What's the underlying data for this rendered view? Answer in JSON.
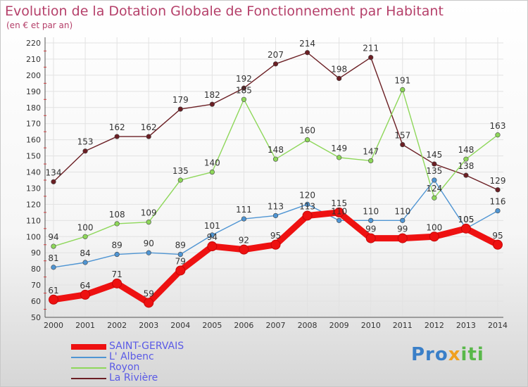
{
  "title": "Evolution de la Dotation Globale de Fonctionnement par Habitant",
  "subtitle": "(en € et par an)",
  "logo": {
    "part1": "Pro",
    "part2": "x",
    "part3": "iti"
  },
  "chart_data": {
    "type": "line",
    "title": "Evolution de la Dotation Globale de Fonctionnement par Habitant",
    "xlabel": "",
    "ylabel": "(en € et par an)",
    "ylim": [
      50,
      220
    ],
    "ytick_step": 10,
    "legend_position": "bottom-left",
    "categories": [
      "2000",
      "2001",
      "2002",
      "2003",
      "2004",
      "2005",
      "2006",
      "2007",
      "2008",
      "2009",
      "2010",
      "2011",
      "2012",
      "2013",
      "2014"
    ],
    "series": [
      {
        "name": "SAINT-GERVAIS",
        "color": "#ee1111",
        "values": [
          61,
          64,
          71,
          59,
          79,
          94,
          92,
          95,
          113,
          115,
          99,
          99,
          100,
          105,
          95
        ]
      },
      {
        "name": "L' Albenc",
        "color": "#4f95d3",
        "values": [
          81,
          84,
          89,
          90,
          89,
          101,
          111,
          113,
          120,
          110,
          110,
          110,
          135,
          105,
          116
        ]
      },
      {
        "name": "Royon",
        "color": "#8ed75a",
        "values": [
          94,
          100,
          108,
          109,
          135,
          140,
          185,
          148,
          160,
          149,
          147,
          191,
          124,
          148,
          163
        ]
      },
      {
        "name": "La Rivière",
        "color": "#6b1f24",
        "values": [
          134,
          153,
          162,
          162,
          179,
          182,
          192,
          207,
          214,
          198,
          211,
          157,
          145,
          138,
          129
        ]
      }
    ]
  }
}
